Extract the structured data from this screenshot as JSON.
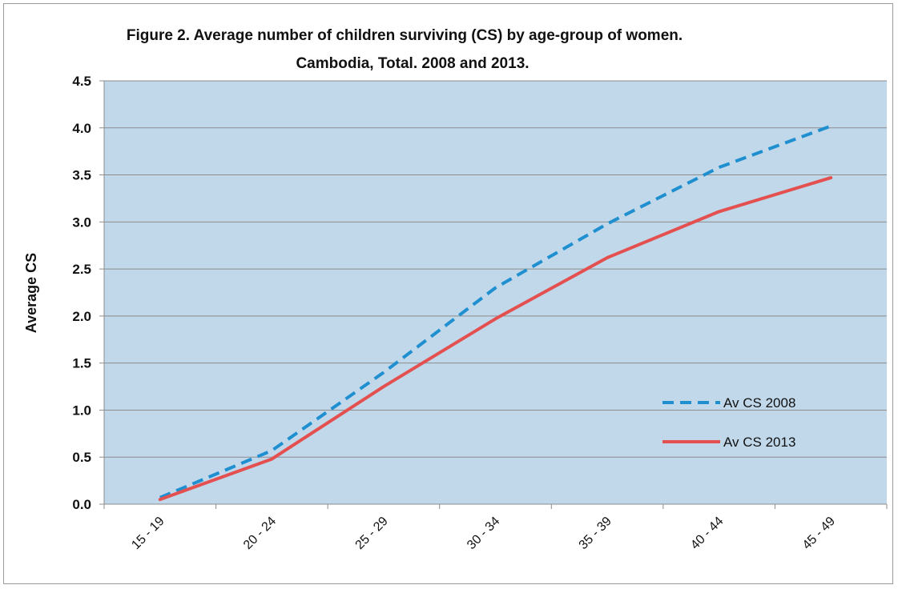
{
  "chart_data": {
    "type": "line",
    "title_line1": "Figure 2. Average number of children surviving (CS) by age-group of women.",
    "title_line2": "Cambodia, Total. 2008 and 2013.",
    "xlabel": "",
    "ylabel": "Average CS",
    "categories": [
      "15 - 19",
      "20 - 24",
      "25 - 29",
      "30 - 34",
      "35 - 39",
      "40 - 44",
      "45 - 49"
    ],
    "ylim": [
      0,
      4.5
    ],
    "yticks": [
      "0.0",
      "0.5",
      "1.0",
      "1.5",
      "2.0",
      "2.5",
      "3.0",
      "3.5",
      "4.0",
      "4.5"
    ],
    "grid": true,
    "legend_position": "right",
    "plot_background": "#c0d8ea",
    "series": [
      {
        "name": "Av CS 2008",
        "color": "#1f8fd0",
        "dash": "dashed",
        "values": [
          0.07,
          0.57,
          1.4,
          2.3,
          2.98,
          3.58,
          4.02
        ]
      },
      {
        "name": "Av CS 2013",
        "color": "#e45050",
        "dash": "solid",
        "values": [
          0.05,
          0.48,
          1.25,
          1.97,
          2.62,
          3.11,
          3.47
        ]
      }
    ]
  }
}
